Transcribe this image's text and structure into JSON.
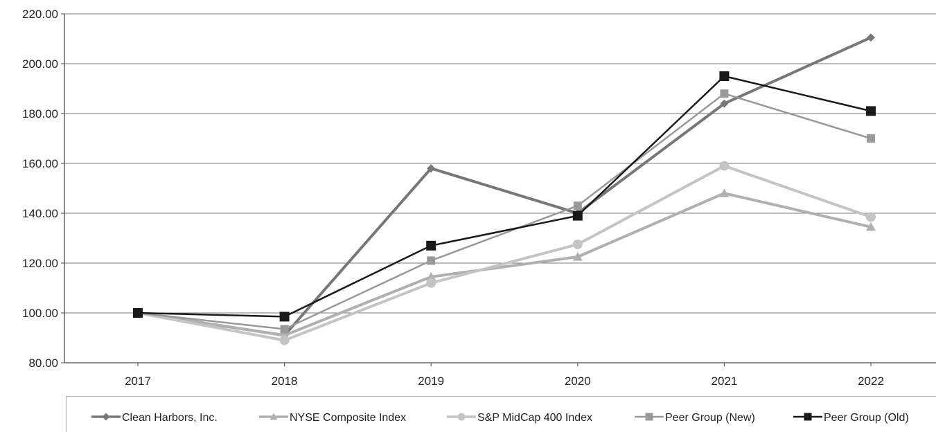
{
  "chart_data": {
    "type": "line",
    "x": [
      "2017",
      "2018",
      "2019",
      "2020",
      "2021",
      "2022"
    ],
    "ylim": [
      80,
      220
    ],
    "yticks": [
      "80.00",
      "100.00",
      "120.00",
      "140.00",
      "160.00",
      "180.00",
      "200.00",
      "220.00"
    ],
    "grid": "horizontal",
    "legend_position": "bottom",
    "series": [
      {
        "name": "Clean Harbors, Inc.",
        "marker": "diamond",
        "color": "#777777",
        "values": [
          100,
          91,
          158,
          140,
          184,
          210.5
        ]
      },
      {
        "name": "NYSE Composite Index",
        "marker": "triangle",
        "color": "#b0b0b0",
        "values": [
          100,
          91,
          114.5,
          122.5,
          148,
          134.5
        ]
      },
      {
        "name": "S&P MidCap 400 Index",
        "marker": "circle",
        "color": "#c4c4c4",
        "values": [
          100,
          89,
          112,
          127.5,
          159,
          138.5
        ]
      },
      {
        "name": "Peer Group (New)",
        "marker": "square",
        "color": "#999999",
        "values": [
          100,
          93.5,
          121,
          143,
          188,
          170
        ]
      },
      {
        "name": "Peer Group (Old)",
        "marker": "square",
        "color": "#1a1a1a",
        "values": [
          100,
          98.5,
          127,
          139,
          195,
          181
        ]
      }
    ]
  }
}
